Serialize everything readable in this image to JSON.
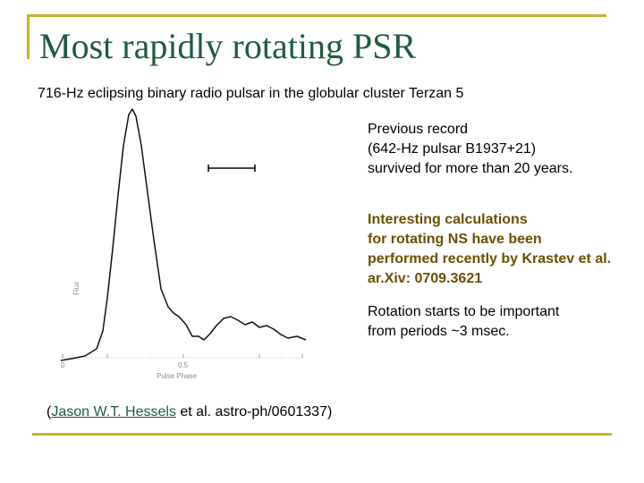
{
  "slide": {
    "title": "Most rapidly rotating PSR",
    "subtitle": "716-Hz eclipsing binary radio pulsar in the globular cluster Terzan 5",
    "block1": [
      "Previous record",
      "(642-Hz pulsar B1937+21)",
      "survived for more than 20 years."
    ],
    "block2": [
      "Interesting calculations",
      "for rotating NS have been",
      "performed recently by Krastev et al.",
      "ar.Xiv: 0709.3621"
    ],
    "block3": [
      "Rotation starts to be important",
      "from periods ~3 msec."
    ],
    "citation": {
      "open": "(",
      "author_link": "Jason W.T. Hessels",
      "rest": " et al.  astro-ph/0601337)"
    }
  },
  "profile": {
    "x_tick_labels": [
      "0",
      "0.5"
    ],
    "xlabel": "Pulse Phase",
    "ylabel": "Flux",
    "colors": {
      "line": "#111111",
      "axis": "#bbbbbb"
    }
  },
  "colors": {
    "frame": "#c9b02a",
    "title": "#1f5b3f",
    "highlight": "#6b5000",
    "link": "#1f5b3f"
  }
}
